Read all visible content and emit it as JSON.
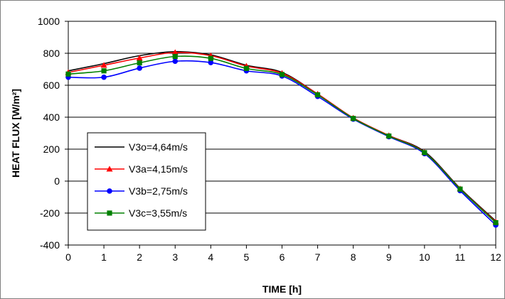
{
  "chart_data": {
    "type": "line",
    "title": "",
    "xlabel": "TIME [h]",
    "ylabel": "HEAT FLUX [W/m²]",
    "xlim": [
      0,
      12
    ],
    "ylim": [
      -400,
      1000
    ],
    "x_ticks": [
      0,
      1,
      2,
      3,
      4,
      5,
      6,
      7,
      8,
      9,
      10,
      11,
      12
    ],
    "y_ticks": [
      -400,
      -200,
      0,
      200,
      400,
      600,
      800,
      1000
    ],
    "grid": "horizontal",
    "legend_position": "lower-left",
    "x": [
      0,
      1,
      2,
      3,
      4,
      5,
      6,
      7,
      8,
      9,
      10,
      11,
      12
    ],
    "series": [
      {
        "name": "V3o=4,64m/s",
        "color": "#000000",
        "marker": "none",
        "values": [
          690,
          735,
          785,
          810,
          790,
          725,
          680,
          545,
          395,
          285,
          185,
          -45,
          -250
        ]
      },
      {
        "name": "V3a=4,15m/s",
        "color": "#ff0000",
        "marker": "triangle",
        "values": [
          680,
          725,
          770,
          805,
          785,
          720,
          675,
          545,
          395,
          285,
          180,
          -48,
          -255
        ]
      },
      {
        "name": "V3b=2,75m/s",
        "color": "#0000ff",
        "marker": "circle",
        "values": [
          650,
          650,
          707,
          750,
          742,
          690,
          658,
          530,
          388,
          278,
          172,
          -60,
          -275
        ]
      },
      {
        "name": "V3c=3,55m/s",
        "color": "#008000",
        "marker": "square",
        "values": [
          670,
          690,
          740,
          780,
          768,
          705,
          667,
          540,
          392,
          282,
          178,
          -50,
          -260
        ]
      }
    ]
  }
}
